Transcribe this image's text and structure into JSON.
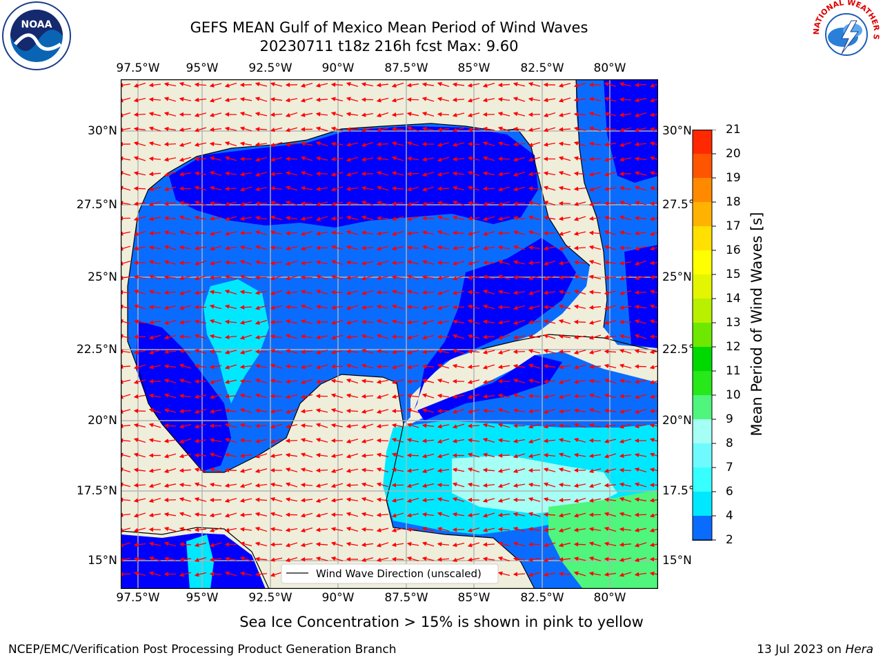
{
  "header": {
    "title_line1": "GEFS MEAN Gulf of Mexico Mean Period of Wind Waves",
    "title_line2": "20230711 t18z 216h fcst   Max: 9.60"
  },
  "map": {
    "lon_ticks": [
      "97.5°W",
      "95°W",
      "92.5°W",
      "90°W",
      "87.5°W",
      "85°W",
      "82.5°W",
      "80°W"
    ],
    "lat_ticks_left": [
      "30°N",
      "27.5°N",
      "25°N",
      "22.5°N",
      "20°N",
      "17.5°N",
      "15°N"
    ],
    "lat_ticks_right": [
      "30°N",
      "27.5°N",
      "25°N",
      "22.5°N",
      "20°N",
      "17.5°N",
      "15°N"
    ],
    "legend_label": "Wind Wave Direction (unscaled)",
    "colors": {
      "land": "#efeedb",
      "coast": "#000000",
      "grid": "#b3b3b3",
      "arrow": "#ff0000"
    }
  },
  "colorbar": {
    "label": "Mean Period of Wind Waves [s]",
    "ticks": [
      "2",
      "4",
      "6",
      "7",
      "8",
      "9",
      "10",
      "11",
      "12",
      "13",
      "14",
      "15",
      "16",
      "17",
      "18",
      "19",
      "20",
      "21"
    ],
    "colors": [
      "#0a6cff",
      "#00e8ff",
      "#38ffff",
      "#6efaff",
      "#a6fff5",
      "#4ff57c",
      "#26e81a",
      "#00d900",
      "#6ee800",
      "#b8f000",
      "#e3f500",
      "#ffff00",
      "#ffe000",
      "#ffb300",
      "#ff8a00",
      "#ff5400",
      "#ff2800"
    ],
    "under_color": "#0000ff"
  },
  "footer": {
    "note": "Sea Ice Concentration > 15% is shown in pink to yellow",
    "credit": "NCEP/EMC/Verification Post Processing Product Generation Branch",
    "date_prefix": "13 Jul 2023 on",
    "host": "Hera"
  },
  "logos": {
    "left": "NOAA",
    "right": "NATIONAL WEATHER SERVICE"
  }
}
